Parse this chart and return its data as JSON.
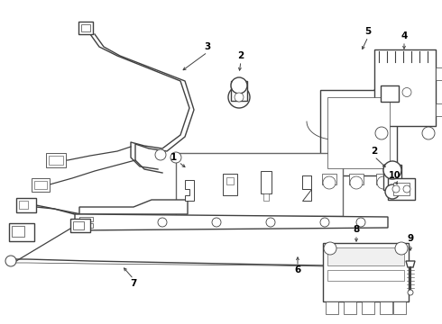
{
  "background_color": "#ffffff",
  "line_color": "#404040",
  "label_color": "#000000",
  "figsize": [
    4.9,
    3.6
  ],
  "dpi": 100,
  "lw": 0.75,
  "parts": {
    "label_fontsize": 7.5
  }
}
